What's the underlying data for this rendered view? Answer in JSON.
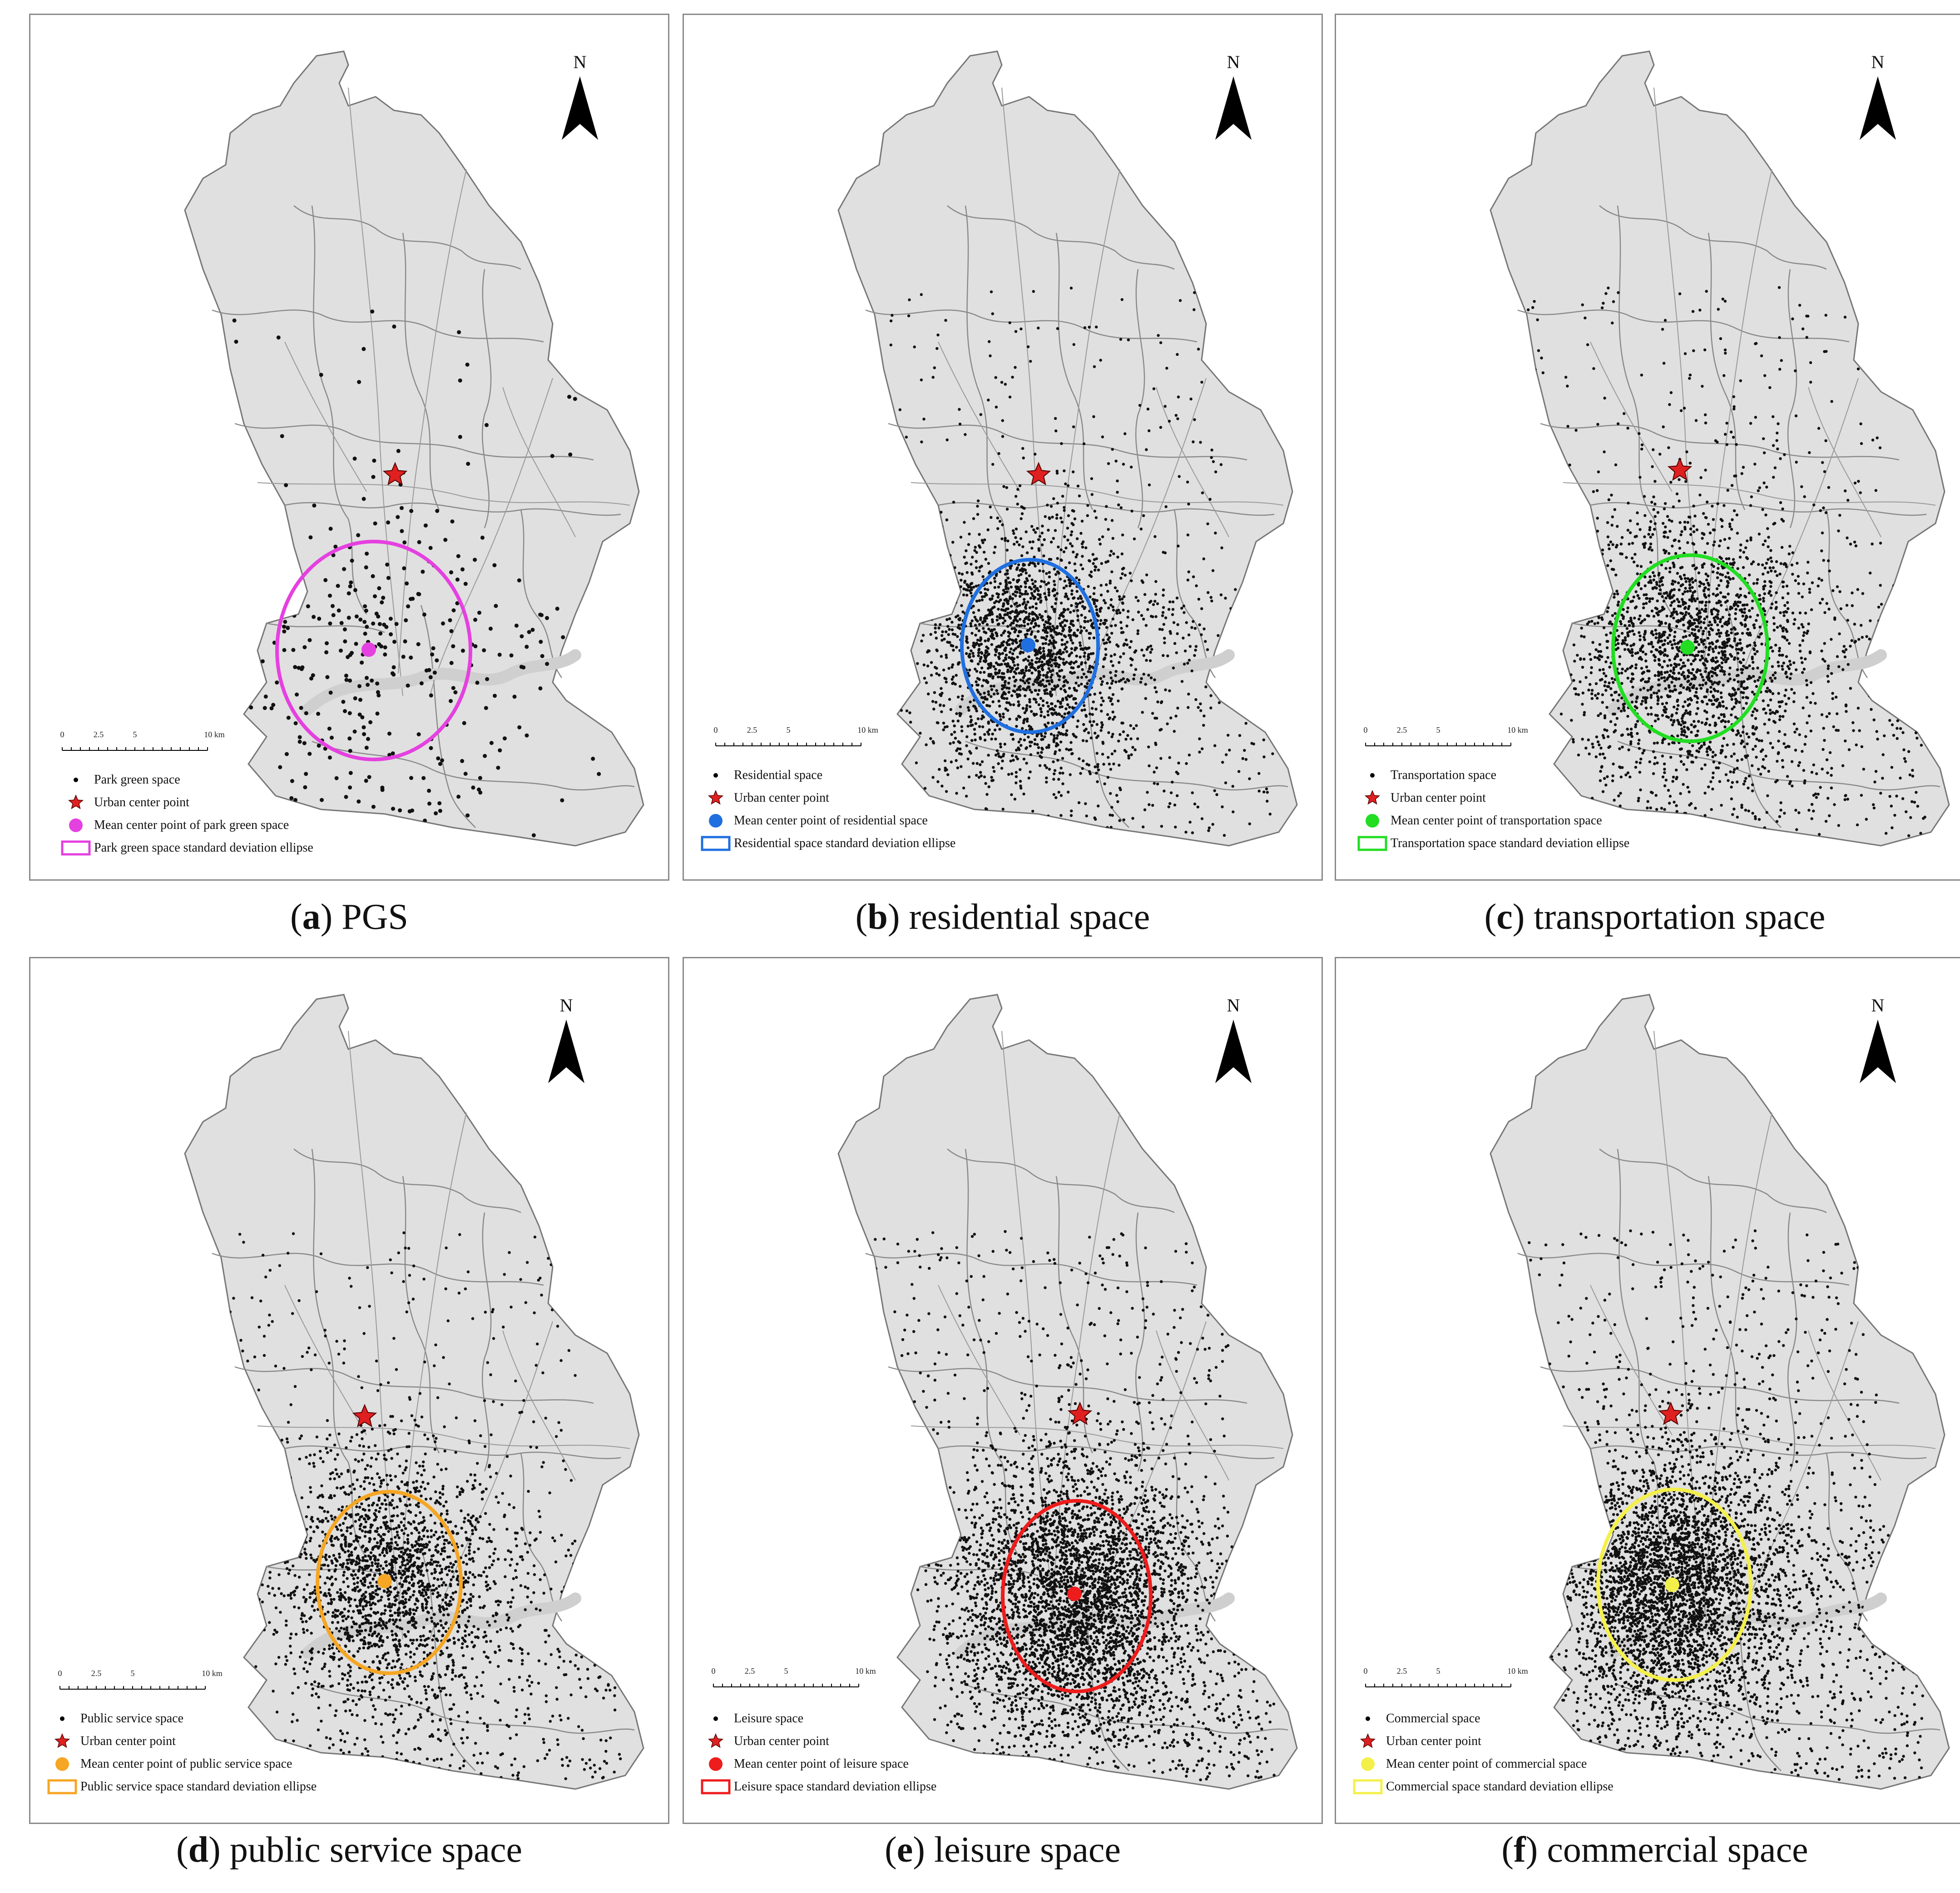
{
  "map_common": {
    "north_label": "N",
    "scale_ticks": [
      "0",
      "2.5",
      "5",
      "10 km"
    ],
    "urban_center_label": "Urban center point",
    "land_color": "#e0e0e0",
    "border_color": "#777777",
    "point_color": "#111111",
    "star_color": "#e02020"
  },
  "panels": [
    {
      "id": "a",
      "letter": "a",
      "caption": "PGS",
      "color": "#e540e0",
      "density": "sparse",
      "legend": [
        "Park green space",
        "Urban center point",
        "Mean center point of park green space",
        "Park green space standard deviation ellipse"
      ]
    },
    {
      "id": "b",
      "letter": "b",
      "caption": "residential space",
      "color": "#1f6fe0",
      "density": "dense",
      "legend": [
        "Residential space",
        "Urban center point",
        "Mean center point of residential space",
        "Residential space standard deviation ellipse"
      ]
    },
    {
      "id": "c",
      "letter": "c",
      "caption": "transportation space",
      "color": "#22dd22",
      "density": "dense",
      "legend": [
        "Transportation space",
        "Urban center point",
        "Mean center point of transportation space",
        "Transportation space standard deviation ellipse"
      ]
    },
    {
      "id": "d",
      "letter": "d",
      "caption": "public service space",
      "color": "#f5a623",
      "density": "dense",
      "legend": [
        "Public service space",
        "Urban center point",
        "Mean center point of public service space",
        "Public service space standard deviation ellipse"
      ]
    },
    {
      "id": "e",
      "letter": "e",
      "caption": "leisure space",
      "color": "#ee1c1c",
      "density": "very-dense",
      "legend": [
        "Leisure space",
        "Urban center point",
        "Mean center point of leisure space",
        "Leisure space standard deviation ellipse"
      ]
    },
    {
      "id": "f",
      "letter": "f",
      "caption": "commercial space",
      "color": "#f4f04a",
      "density": "very-dense",
      "legend": [
        "Commercial space",
        "Urban center point",
        "Mean center point of commercial space",
        "Commercial space standard deviation ellipse"
      ]
    }
  ]
}
